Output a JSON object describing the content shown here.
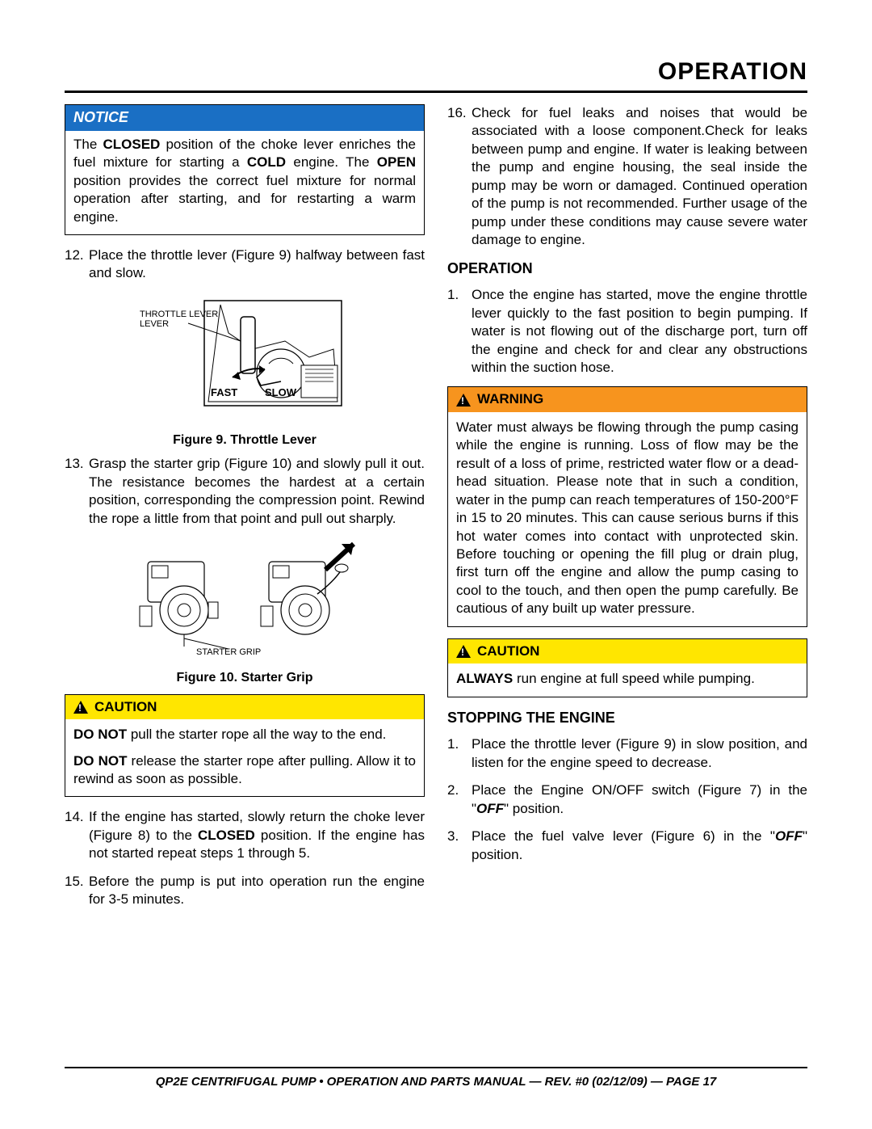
{
  "header": {
    "title": "OPERATION"
  },
  "left": {
    "notice": {
      "label": "NOTICE",
      "body_html": "The <strong class='k'>CLOSED</strong> position of the choke lever enriches the fuel mixture for starting a <strong class='k'>COLD</strong> engine. The <strong class='k'>OPEN</strong> position provides the correct fuel mixture for normal operation after starting, and for restarting a warm engine."
    },
    "step12": {
      "num": "12.",
      "text": "Place the throttle lever (Figure 9) halfway between fast and slow."
    },
    "fig9": {
      "caption": "Figure 9. Throttle Lever",
      "label_throttle": "THROTTLE LEVER",
      "label_fast": "FAST",
      "label_slow": "SLOW"
    },
    "step13": {
      "num": "13.",
      "text": "Grasp the starter grip (Figure 10) and slowly pull it out. The resistance becomes the hardest at a certain position, corresponding the compression point. Rewind the rope a little from that point and pull out sharply."
    },
    "fig10": {
      "caption": "Figure 10. Starter Grip",
      "label_starter": "STARTER GRIP"
    },
    "caution1": {
      "label": "CAUTION",
      "p1_html": "<strong class='k'>DO NOT</strong> pull the starter rope all the way to the end.",
      "p2_html": "<strong class='k'>DO NOT</strong> release the starter rope after pulling. Allow it to rewind as soon as possible."
    },
    "step14": {
      "num": "14.",
      "text_html": "If the engine has started, slowly return the choke lever (Figure 8) to the <strong class='k'>CLOSED</strong> position. If the engine has not started repeat steps 1 through 5."
    },
    "step15": {
      "num": "15.",
      "text": "Before the pump is put into operation run the engine for 3-5 minutes."
    }
  },
  "right": {
    "step16": {
      "num": "16.",
      "text": "Check for fuel leaks and noises that would be associated with a loose component.Check for leaks between pump and engine. If water is leaking between the pump and engine housing, the seal inside the pump may be worn or damaged. Continued operation of the pump is not recommended. Further usage of the pump under these conditions may cause severe water damage to engine."
    },
    "op_heading": "OPERATION",
    "op_step1": {
      "num": "1.",
      "text": "Once the engine has started, move the engine throttle lever quickly to the fast position to begin pumping. If water is not flowing out of the discharge port, turn off the engine and check for and clear any obstructions within the suction hose."
    },
    "warning": {
      "label": "WARNING",
      "body": "Water must always be flowing through the pump casing while the engine is running. Loss of flow may be the result of a loss of prime, restricted water flow or a dead-head situation. Please note that in such a condition, water in the pump can reach temperatures of 150-200°F in 15 to 20 minutes. This can cause serious burns if this hot water comes into contact with unprotected skin. Before touching or opening the fill plug or drain plug, first turn off the engine and allow the pump casing to cool to the touch, and then open the pump carefully. Be cautious of any built up water pressure."
    },
    "caution2": {
      "label": "CAUTION",
      "body_html": "<strong class='k'>ALWAYS</strong> run engine at full speed while pumping."
    },
    "stop_heading": "STOPPING THE ENGINE",
    "stop1": {
      "num": "1.",
      "text": "Place the throttle lever (Figure 9) in slow position, and listen for the engine speed to decrease."
    },
    "stop2": {
      "num": "2.",
      "text_html": "Place the Engine ON/OFF switch (Figure 7) in the \"<em class='k'>OFF</em>\" position."
    },
    "stop3": {
      "num": "3.",
      "text_html": "Place the fuel valve lever (Figure 6) in the \"<em class='k'>OFF</em>\" position."
    }
  },
  "footer": {
    "text": "QP2E CENTRIFUGAL PUMP • OPERATION AND PARTS MANUAL — REV. #0 (02/12/09) — PAGE 17"
  },
  "colors": {
    "notice_bg": "#1a6fc4",
    "warning_bg": "#f7941e",
    "caution_bg": "#ffe600"
  }
}
